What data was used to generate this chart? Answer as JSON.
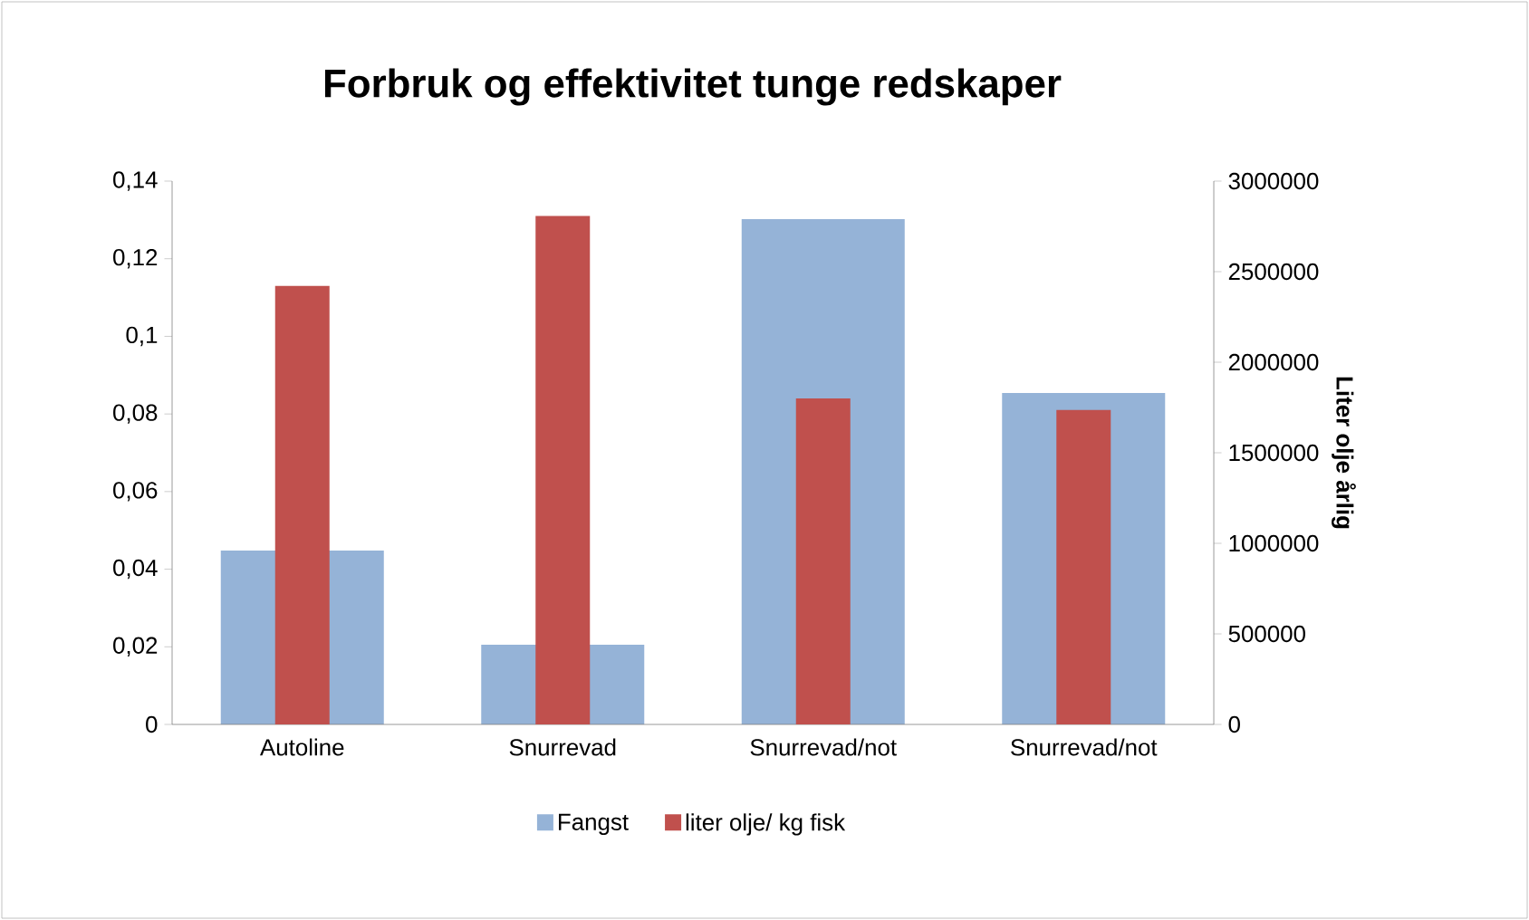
{
  "chart_data": {
    "type": "bar",
    "title": "Forbruk og effektivitet tunge redskaper",
    "y2label": "Liter olje årlig",
    "categories": [
      "Autoline",
      "Snurrevad",
      "Snurrevad/not",
      "Snurrevad/not"
    ],
    "series": [
      {
        "name": "Fangst",
        "color": "#95b3d7",
        "axis": "y2",
        "values": [
          960000,
          440000,
          2790000,
          1830000
        ]
      },
      {
        "name": "liter olje/ kg fisk",
        "color": "#c0504d",
        "values": [
          0.113,
          0.131,
          0.084,
          0.081
        ]
      }
    ],
    "ylim": [
      0,
      0.14
    ],
    "yticks": [
      0,
      {
        "value": 0.02,
        "label": "0,02"
      },
      {
        "value": 0.04,
        "label": "0,04"
      },
      {
        "value": 0.06,
        "label": "0,06"
      },
      {
        "value": 0.08,
        "label": "0,08"
      },
      {
        "value": 0.1,
        "label": "0,1"
      },
      {
        "value": 0.12,
        "label": "0,12"
      },
      {
        "value": 0.14,
        "label": "0,14"
      }
    ],
    "y2lim": [
      0,
      3000000
    ],
    "y2ticks": [
      0,
      500000,
      1000000,
      1500000,
      2000000,
      2500000,
      3000000
    ],
    "legend": "bottom",
    "grid": false
  }
}
